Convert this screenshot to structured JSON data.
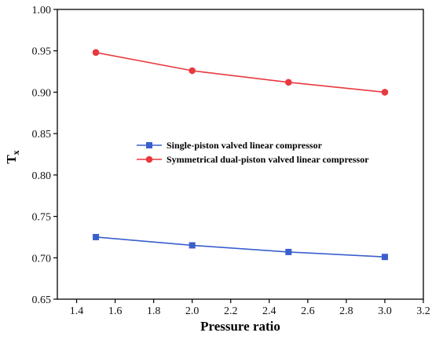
{
  "chart_data": {
    "type": "line",
    "xlabel": "Pressure ratio",
    "ylabel_main": "T",
    "ylabel_sub": "x",
    "xlim": [
      1.3,
      3.2
    ],
    "ylim": [
      0.65,
      1.0
    ],
    "xticks": [
      "1.4",
      "1.6",
      "1.8",
      "2.0",
      "2.2",
      "2.4",
      "2.6",
      "2.8",
      "3.0",
      "3.2"
    ],
    "yticks": [
      "0.65",
      "0.70",
      "0.75",
      "0.80",
      "0.85",
      "0.90",
      "0.95",
      "1.00"
    ],
    "legend_placement": "center",
    "grid": false,
    "series": [
      {
        "name": "Single-piston valved linear compressor",
        "color": "#3a5fcd",
        "marker": "square",
        "x": [
          1.5,
          2.0,
          2.5,
          3.0
        ],
        "y": [
          0.725,
          0.715,
          0.707,
          0.701
        ]
      },
      {
        "name": "Symmetrical dual-piston valved linear compressor",
        "color": "#e8393e",
        "marker": "circle",
        "x": [
          1.5,
          2.0,
          2.5,
          3.0
        ],
        "y": [
          0.948,
          0.926,
          0.912,
          0.9
        ]
      }
    ]
  }
}
